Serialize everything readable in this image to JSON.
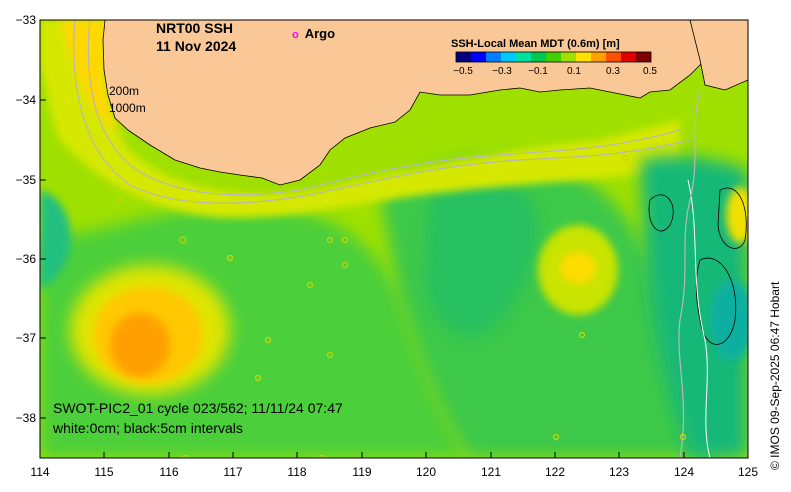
{
  "map": {
    "title_line1": "NRT00 SSH",
    "title_line2": "11 Nov 2024",
    "legend_argo_symbol": "o",
    "legend_argo_label": "Argo",
    "colorbar": {
      "label": "SSH-Local Mean MDT (0.6m) [m]",
      "ticks": [
        "−0.5",
        "−0.3",
        "−0.1",
        "0.1",
        "0.3",
        "0.5"
      ],
      "colors": [
        "#000080",
        "#0000ff",
        "#0080ff",
        "#00c8ff",
        "#00e0a0",
        "#00c850",
        "#40d000",
        "#a0e000",
        "#ffe000",
        "#ffa000",
        "#ff5000",
        "#e00000",
        "#800000"
      ]
    },
    "isobath_labels": [
      "200m",
      "1000m"
    ],
    "y_ticks": [
      "−33",
      "−34",
      "−35",
      "−36",
      "−37",
      "−38"
    ],
    "x_ticks": [
      "114",
      "115",
      "116",
      "117",
      "118",
      "119",
      "120",
      "121",
      "122",
      "123",
      "124",
      "125"
    ],
    "satellite_line": "SWOT-PIC2_01 cycle 023/562; 11/11/24 07:47",
    "interval_line": "white:0cm; black:5cm intervals",
    "credit": "© IMOS 09-Sep-2025 06:47 Hobart",
    "land_color": "#f9c896",
    "ocean_base_color": "#9fe000"
  }
}
